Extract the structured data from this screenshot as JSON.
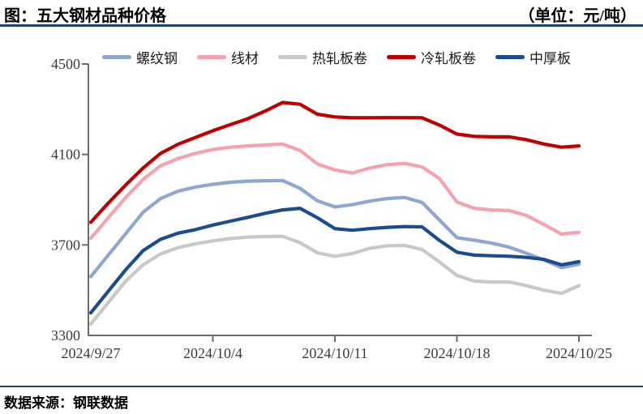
{
  "header": {
    "title": "图：五大钢材品种价格",
    "unit": "（单位：元/吨）"
  },
  "footer": {
    "source": "数据来源：钢联数据"
  },
  "chart_data": {
    "type": "line",
    "title": "五大钢材品种价格",
    "unit": "元/吨",
    "legend_position": "top",
    "grid": false,
    "ylim": [
      3300,
      4500
    ],
    "yticks": [
      4500,
      4100,
      3700,
      3300
    ],
    "xticks": [
      "2024/9/27",
      "2024/10/4",
      "2024/10/11",
      "2024/10/18",
      "2024/10/25"
    ],
    "x": [
      "2024/9/27",
      "2024/9/28",
      "2024/9/29",
      "2024/9/30",
      "2024/10/1",
      "2024/10/2",
      "2024/10/3",
      "2024/10/4",
      "2024/10/5",
      "2024/10/6",
      "2024/10/7",
      "2024/10/8",
      "2024/10/9",
      "2024/10/10",
      "2024/10/11",
      "2024/10/12",
      "2024/10/13",
      "2024/10/14",
      "2024/10/15",
      "2024/10/16",
      "2024/10/17",
      "2024/10/18",
      "2024/10/19",
      "2024/10/20",
      "2024/10/21",
      "2024/10/22",
      "2024/10/23",
      "2024/10/24",
      "2024/10/25"
    ],
    "series": [
      {
        "name": "螺纹钢",
        "color": "#8fa6cf",
        "values": [
          3560,
          3655,
          3750,
          3845,
          3905,
          3938,
          3956,
          3968,
          3977,
          3982,
          3984,
          3985,
          3950,
          3895,
          3868,
          3878,
          3894,
          3905,
          3910,
          3888,
          3810,
          3732,
          3721,
          3708,
          3690,
          3663,
          3633,
          3600,
          3615
        ]
      },
      {
        "name": "线材",
        "color": "#f5a2ae",
        "values": [
          3730,
          3820,
          3910,
          3990,
          4050,
          4082,
          4105,
          4122,
          4132,
          4138,
          4142,
          4146,
          4118,
          4058,
          4032,
          4018,
          4040,
          4055,
          4060,
          4045,
          3993,
          3890,
          3862,
          3855,
          3852,
          3830,
          3790,
          3748,
          3756
        ]
      },
      {
        "name": "热轧板卷",
        "color": "#c8c8c8",
        "values": [
          3350,
          3445,
          3540,
          3612,
          3660,
          3688,
          3705,
          3718,
          3728,
          3735,
          3737,
          3738,
          3710,
          3665,
          3650,
          3662,
          3685,
          3696,
          3698,
          3680,
          3625,
          3565,
          3540,
          3536,
          3536,
          3520,
          3500,
          3486,
          3520
        ]
      },
      {
        "name": "冷轧板卷",
        "color": "#c00000",
        "values": [
          3800,
          3885,
          3965,
          4040,
          4105,
          4145,
          4175,
          4205,
          4232,
          4258,
          4292,
          4330,
          4322,
          4278,
          4266,
          4262,
          4262,
          4263,
          4263,
          4262,
          4230,
          4190,
          4180,
          4178,
          4178,
          4165,
          4146,
          4132,
          4138
        ]
      },
      {
        "name": "中厚板",
        "color": "#1c4b8f",
        "values": [
          3400,
          3495,
          3590,
          3675,
          3725,
          3752,
          3768,
          3788,
          3805,
          3822,
          3840,
          3855,
          3862,
          3820,
          3772,
          3765,
          3772,
          3778,
          3781,
          3780,
          3720,
          3668,
          3655,
          3652,
          3650,
          3645,
          3636,
          3612,
          3626
        ]
      }
    ]
  }
}
